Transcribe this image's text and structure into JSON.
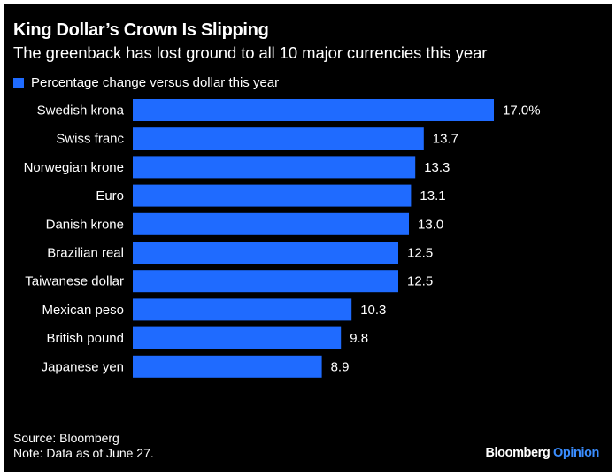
{
  "header": {
    "title": "King Dollar’s Crown Is Slipping",
    "subtitle": "The greenback has lost ground to all 10 major currencies this year"
  },
  "footer": {
    "source": "Source: Bloomberg",
    "note": "Note: Data as of June 27.",
    "brand_main": "Bloomberg",
    "brand_accent": "Opinion"
  },
  "colors": {
    "background": "#000000",
    "bar": "#1f6bff",
    "text": "#ffffff",
    "brand_accent": "#3a8dff"
  },
  "chart_data": {
    "type": "bar",
    "orientation": "horizontal",
    "title": "King Dollar’s Crown Is Slipping",
    "subtitle": "The greenback has lost ground to all 10 major currencies this year",
    "legend_position": "top-left",
    "grid": false,
    "xlim": [
      0,
      17.0
    ],
    "categories": [
      "Swedish krona",
      "Swiss franc",
      "Norwegian krone",
      "Euro",
      "Danish krone",
      "Brazilian real",
      "Taiwanese dollar",
      "Mexican peso",
      "British pound",
      "Japanese yen"
    ],
    "series": [
      {
        "name": "Percentage change versus dollar this year",
        "values": [
          17.0,
          13.7,
          13.3,
          13.1,
          13.0,
          12.5,
          12.5,
          10.3,
          9.8,
          8.9
        ],
        "data_labels": [
          "17.0%",
          "13.7",
          "13.3",
          "13.1",
          "13.0",
          "12.5",
          "12.5",
          "10.3",
          "9.8",
          "8.9"
        ]
      }
    ]
  }
}
